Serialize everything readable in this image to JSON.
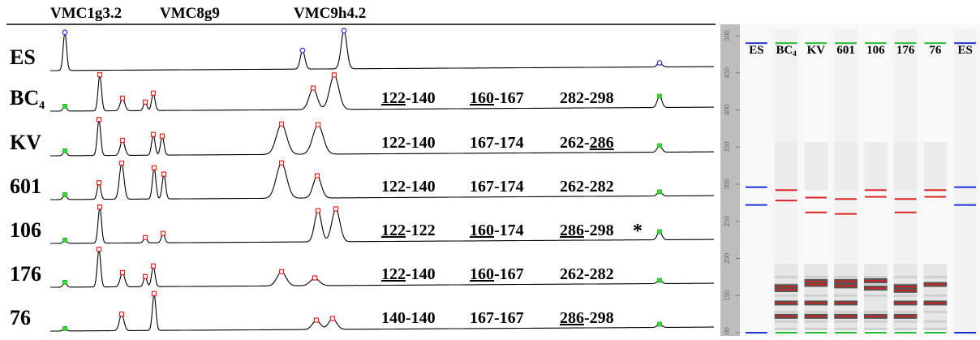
{
  "markers": [
    "VMC1g3.2",
    "VMC8g9",
    "VMC9h4.2"
  ],
  "electropherogram": {
    "traces": [
      {
        "label": "ES",
        "sub": "",
        "alleles": null,
        "star": false
      },
      {
        "label": "BC",
        "sub": "4",
        "alleles": [
          {
            "text": "122",
            "underline": true
          },
          {
            "text": "-140",
            "underline": false
          },
          {
            "sep": true
          },
          {
            "text": "160",
            "underline": true
          },
          {
            "text": "-167",
            "underline": false
          },
          {
            "sep": true
          },
          {
            "text": "282-298",
            "underline": false
          }
        ],
        "star": false
      },
      {
        "label": "KV",
        "sub": "",
        "alleles": [
          {
            "text": "122-140",
            "underline": false
          },
          {
            "sep": true
          },
          {
            "text": "167-174",
            "underline": false
          },
          {
            "sep": true
          },
          {
            "text": "262-",
            "underline": false
          },
          {
            "text": "286",
            "underline": true
          }
        ],
        "star": false
      },
      {
        "label": "601",
        "sub": "",
        "alleles": [
          {
            "text": "122-140",
            "underline": false
          },
          {
            "sep": true
          },
          {
            "text": "167-174",
            "underline": false
          },
          {
            "sep": true
          },
          {
            "text": "262-282",
            "underline": false
          }
        ],
        "star": false
      },
      {
        "label": "106",
        "sub": "",
        "alleles": [
          {
            "text": "122",
            "underline": true
          },
          {
            "text": "-122",
            "underline": false
          },
          {
            "sep": true
          },
          {
            "text": "160",
            "underline": true
          },
          {
            "text": "-174",
            "underline": false
          },
          {
            "sep": true
          },
          {
            "text": "286",
            "underline": true
          },
          {
            "text": "-298",
            "underline": false
          }
        ],
        "star": true
      },
      {
        "label": "176",
        "sub": "",
        "alleles": [
          {
            "text": "122",
            "underline": true
          },
          {
            "text": "-140",
            "underline": false
          },
          {
            "sep": true
          },
          {
            "text": "160",
            "underline": true
          },
          {
            "text": "-167",
            "underline": false
          },
          {
            "sep": true
          },
          {
            "text": "262-282",
            "underline": false
          }
        ],
        "star": false
      },
      {
        "label": "76",
        "sub": "",
        "alleles": [
          {
            "text": "140-140",
            "underline": false
          },
          {
            "sep": true
          },
          {
            "text": "167-167",
            "underline": false
          },
          {
            "sep": true
          },
          {
            "text": "286",
            "underline": true
          },
          {
            "text": "-298",
            "underline": false
          }
        ],
        "star": false
      }
    ],
    "star_symbol": "*"
  },
  "gel": {
    "axis_ticks": [
      500,
      450,
      400,
      350,
      300,
      250,
      200,
      150,
      100
    ],
    "lanes": [
      {
        "label": "ES",
        "sub": "",
        "type": "standard",
        "marker_color": "#2233cc",
        "bands": [
          {
            "size": 296,
            "color": "#1d2fd6"
          },
          {
            "size": 272,
            "color": "#1d2fd6"
          },
          {
            "size": 100,
            "color": "#1d2fd6"
          }
        ]
      },
      {
        "label": "BC",
        "sub": "4",
        "type": "sample",
        "marker_color": "#22bb33",
        "bands": [
          {
            "size": 292,
            "color": "#dd2222"
          },
          {
            "size": 278,
            "color": "#dd2222"
          },
          {
            "size": 162,
            "color": "#cc2222"
          },
          {
            "size": 158,
            "color": "#cc2222"
          },
          {
            "size": 140,
            "color": "#cc2222"
          },
          {
            "size": 122,
            "color": "#cc2222"
          }
        ]
      },
      {
        "label": "KV",
        "sub": "",
        "type": "sample",
        "marker_color": "#22bb33",
        "bands": [
          {
            "size": 282,
            "color": "#dd2222"
          },
          {
            "size": 262,
            "color": "#dd2222"
          },
          {
            "size": 169,
            "color": "#cc2222"
          },
          {
            "size": 165,
            "color": "#cc2222"
          },
          {
            "size": 140,
            "color": "#cc2222"
          },
          {
            "size": 122,
            "color": "#cc2222"
          }
        ]
      },
      {
        "label": "601",
        "sub": "",
        "type": "sample",
        "marker_color": "#22bb33",
        "bands": [
          {
            "size": 280,
            "color": "#dd2222"
          },
          {
            "size": 260,
            "color": "#dd2222"
          },
          {
            "size": 169,
            "color": "#cc2222"
          },
          {
            "size": 163,
            "color": "#cc2222"
          },
          {
            "size": 140,
            "color": "#cc2222"
          },
          {
            "size": 122,
            "color": "#cc2222"
          }
        ]
      },
      {
        "label": "106",
        "sub": "",
        "type": "sample",
        "marker_color": "#22bb33",
        "bands": [
          {
            "size": 292,
            "color": "#dd2222"
          },
          {
            "size": 283,
            "color": "#dd2222"
          },
          {
            "size": 170,
            "color": "#cc2222"
          },
          {
            "size": 160,
            "color": "#cc2222"
          },
          {
            "size": 122,
            "color": "#cc2222"
          }
        ]
      },
      {
        "label": "176",
        "sub": "",
        "type": "sample",
        "marker_color": "#22bb33",
        "bands": [
          {
            "size": 280,
            "color": "#dd2222"
          },
          {
            "size": 262,
            "color": "#dd2222"
          },
          {
            "size": 162,
            "color": "#cc2222"
          },
          {
            "size": 157,
            "color": "#cc2222"
          },
          {
            "size": 140,
            "color": "#cc2222"
          },
          {
            "size": 122,
            "color": "#cc2222"
          }
        ]
      },
      {
        "label": "76",
        "sub": "",
        "type": "sample",
        "marker_color": "#22bb33",
        "bands": [
          {
            "size": 292,
            "color": "#dd2222"
          },
          {
            "size": 283,
            "color": "#dd2222"
          },
          {
            "size": 165,
            "color": "#cc2222"
          },
          {
            "size": 140,
            "color": "#cc2222"
          }
        ]
      },
      {
        "label": "ES",
        "sub": "",
        "type": "standard",
        "marker_color": "#2233cc",
        "bands": [
          {
            "size": 296,
            "color": "#1d2fd6"
          },
          {
            "size": 272,
            "color": "#1d2fd6"
          },
          {
            "size": 100,
            "color": "#1d2fd6"
          }
        ]
      }
    ]
  }
}
